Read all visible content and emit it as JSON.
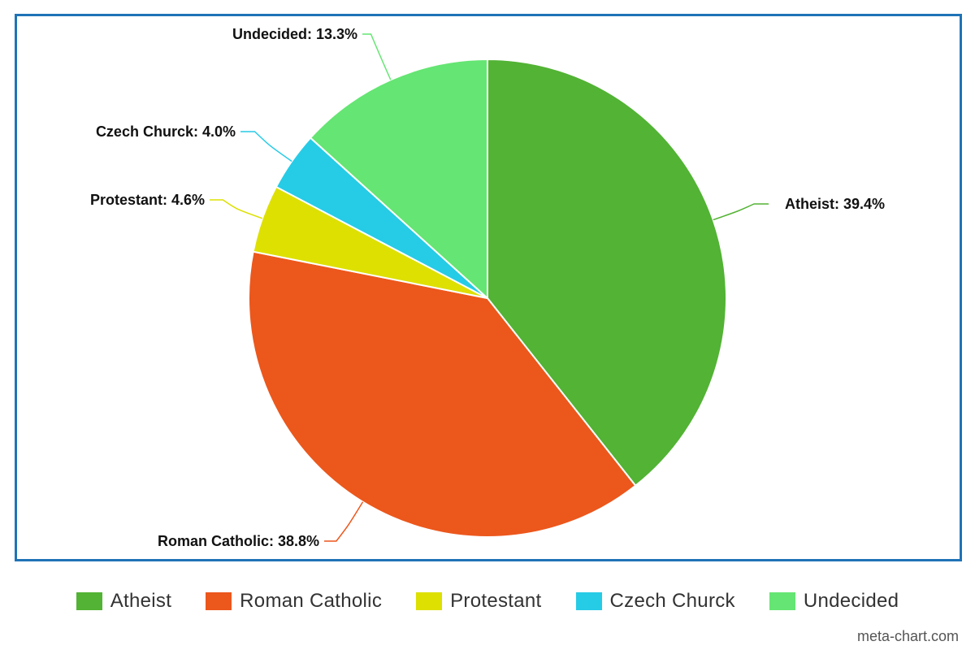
{
  "chart_data": {
    "type": "pie",
    "title": "",
    "categories": [
      "Atheist",
      "Roman Catholic",
      "Protestant",
      "Czech Churck",
      "Undecided"
    ],
    "values": [
      39.4,
      38.8,
      4.6,
      4.0,
      13.3
    ],
    "labels": [
      "Atheist: 39.4%",
      "Roman Catholic: 38.8%",
      "Protestant: 4.6%",
      "Czech Churck: 4.0%",
      "Undecided: 13.3%"
    ],
    "colors": [
      "#52b334",
      "#ec571c",
      "#dde000",
      "#26cbe6",
      "#65e573"
    ],
    "legend_position": "bottom"
  },
  "watermark": "meta-chart.com"
}
